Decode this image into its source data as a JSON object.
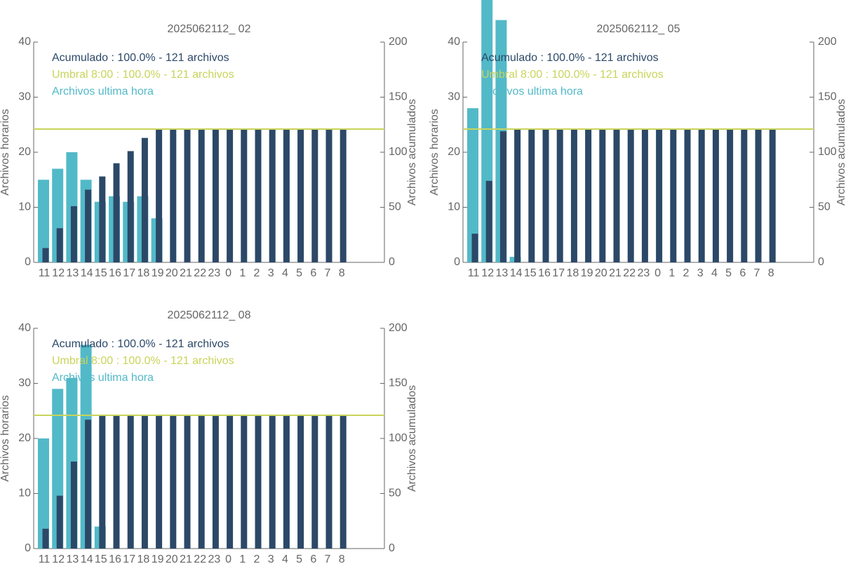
{
  "chart_data": [
    {
      "type": "bar",
      "title": "2025062112_ 02",
      "y_label": "Archivos horarios",
      "y2_label": "Archivos acumulados",
      "categories": [
        "11",
        "12",
        "13",
        "14",
        "15",
        "16",
        "17",
        "18",
        "19",
        "20",
        "21",
        "22",
        "23",
        "0",
        "1",
        "2",
        "3",
        "4",
        "5",
        "6",
        "7",
        "8"
      ],
      "series": [
        {
          "name": "Archivos ultima hora",
          "color": "#52b9c8",
          "values": [
            15,
            17,
            20,
            15,
            11,
            12,
            11,
            12,
            8,
            0,
            0,
            0,
            0,
            0,
            0,
            0,
            0,
            0,
            0,
            0,
            0,
            0
          ]
        },
        {
          "name": "Acumulado : 100.0% - 121 archivos",
          "color": "#2c4868",
          "axis": "y2",
          "values": [
            13,
            31,
            51,
            66,
            78,
            90,
            101,
            113,
            121,
            121,
            121,
            121,
            121,
            121,
            121,
            121,
            121,
            121,
            121,
            121,
            121,
            121
          ]
        }
      ],
      "threshold": {
        "name": "Umbral 8:00 : 100.0% - 121 archivos",
        "color": "#c9d45a",
        "axis": "y2",
        "value": 121
      },
      "ylim": [
        0,
        40
      ],
      "yticks": [
        0,
        10,
        20,
        30,
        40
      ],
      "y2lim": [
        0,
        200
      ],
      "y2ticks": [
        0,
        50,
        100,
        150,
        200
      ],
      "grid": false
    },
    {
      "type": "bar",
      "title": "2025062112_ 05",
      "y_label": "Archivos horarios",
      "y2_label": "Archivos acumulados",
      "categories": [
        "11",
        "12",
        "13",
        "14",
        "15",
        "16",
        "17",
        "18",
        "19",
        "20",
        "21",
        "22",
        "23",
        "0",
        "1",
        "2",
        "3",
        "4",
        "5",
        "6",
        "7",
        "8"
      ],
      "series": [
        {
          "name": "Archivos ultima hora",
          "color": "#52b9c8",
          "values": [
            28,
            48,
            44,
            1,
            0,
            0,
            0,
            0,
            0,
            0,
            0,
            0,
            0,
            0,
            0,
            0,
            0,
            0,
            0,
            0,
            0,
            0
          ]
        },
        {
          "name": "Acumulado : 100.0% - 121 archivos",
          "color": "#2c4868",
          "axis": "y2",
          "values": [
            26,
            74,
            119,
            121,
            121,
            121,
            121,
            121,
            121,
            121,
            121,
            121,
            121,
            121,
            121,
            121,
            121,
            121,
            121,
            121,
            121,
            121
          ]
        }
      ],
      "threshold": {
        "name": "Umbral 8:00 : 100.0% - 121 archivos",
        "color": "#c9d45a",
        "axis": "y2",
        "value": 121
      },
      "ylim": [
        0,
        40
      ],
      "yticks": [
        0,
        10,
        20,
        30,
        40
      ],
      "y2lim": [
        0,
        200
      ],
      "y2ticks": [
        0,
        50,
        100,
        150,
        200
      ],
      "grid": false
    },
    {
      "type": "bar",
      "title": "2025062112_ 08",
      "y_label": "Archivos horarios",
      "y2_label": "Archivos acumulados",
      "categories": [
        "11",
        "12",
        "13",
        "14",
        "15",
        "16",
        "17",
        "18",
        "19",
        "20",
        "21",
        "22",
        "23",
        "0",
        "1",
        "2",
        "3",
        "4",
        "5",
        "6",
        "7",
        "8"
      ],
      "series": [
        {
          "name": "Archivos ultima hora",
          "color": "#52b9c8",
          "values": [
            20,
            29,
            31,
            37,
            4,
            0,
            0,
            0,
            0,
            0,
            0,
            0,
            0,
            0,
            0,
            0,
            0,
            0,
            0,
            0,
            0,
            0
          ]
        },
        {
          "name": "Acumulado : 100.0% - 121 archivos",
          "color": "#2c4868",
          "axis": "y2",
          "values": [
            18,
            48,
            79,
            117,
            121,
            121,
            121,
            121,
            121,
            121,
            121,
            121,
            121,
            121,
            121,
            121,
            121,
            121,
            121,
            121,
            121,
            121
          ]
        }
      ],
      "threshold": {
        "name": "Umbral 8:00 : 100.0% - 121 archivos",
        "color": "#c9d45a",
        "axis": "y2",
        "value": 121
      },
      "ylim": [
        0,
        40
      ],
      "yticks": [
        0,
        10,
        20,
        30,
        40
      ],
      "y2lim": [
        0,
        200
      ],
      "y2ticks": [
        0,
        50,
        100,
        150,
        200
      ],
      "grid": false
    }
  ]
}
